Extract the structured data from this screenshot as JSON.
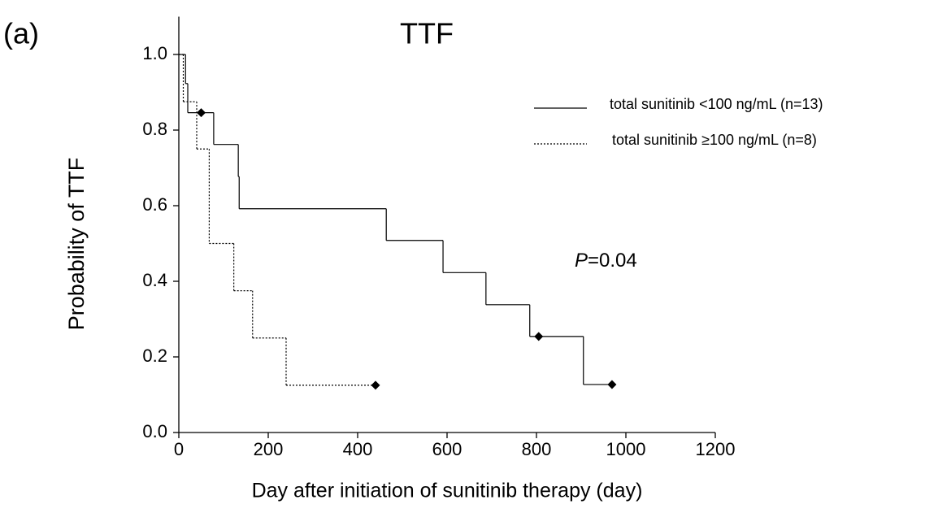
{
  "chart_data": {
    "type": "step",
    "panel_label": "(a)",
    "title": "TTF",
    "xlabel": "Day after initiation of sunitinib therapy  (day)",
    "ylabel": "Probability of TTF",
    "annotation": [
      "P",
      "=0.04"
    ],
    "xlim": [
      0,
      1200
    ],
    "xticks": [
      0,
      200,
      400,
      600,
      800,
      1000,
      1200
    ],
    "ylim": [
      0,
      1.1
    ],
    "yticks": [
      {
        "value": 0,
        "label": "0.0"
      },
      0.2,
      0.4,
      0.6,
      0.8,
      {
        "value": 1,
        "label": "1.0"
      }
    ],
    "series": [
      {
        "name": "total sunitinib <100 ng/mL (n=13)",
        "color": "#000000",
        "line_style": "solid",
        "x": [
          0,
          15,
          20,
          78,
          133,
          135,
          464,
          591,
          687,
          785,
          905,
          969
        ],
        "values": [
          1,
          0.923,
          0.846,
          0.762,
          0.677,
          0.592,
          0.508,
          0.423,
          0.338,
          0.254,
          0.127,
          0.127
        ],
        "censored": {
          "x": [
            50,
            805,
            969
          ],
          "values": [
            0.846,
            0.254,
            0.127
          ]
        }
      },
      {
        "name": "total sunitinib ≥100 ng/mL (n=8)",
        "color": "#000000",
        "line_style": "dotted",
        "x": [
          0,
          10,
          40,
          68,
          123,
          165,
          240,
          440
        ],
        "values": [
          1,
          0.875,
          0.75,
          0.5,
          0.375,
          0.25,
          0.125,
          0.125
        ],
        "censored": {
          "x": [
            440
          ],
          "values": [
            0.125
          ]
        }
      }
    ]
  }
}
